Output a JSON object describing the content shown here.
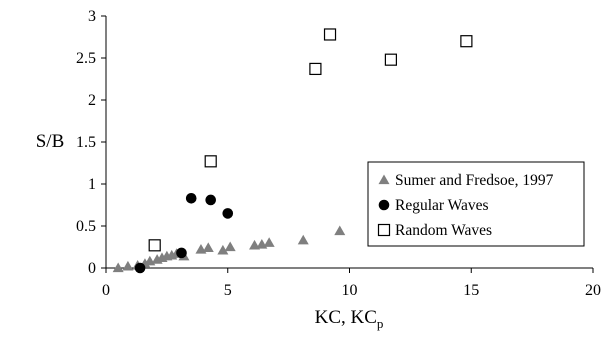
{
  "chart_data": {
    "type": "scatter",
    "xlabel": "KC, KC",
    "xlabel_sub": "p",
    "ylabel": "S/B",
    "xlim": [
      0,
      20
    ],
    "ylim": [
      0,
      3
    ],
    "x_ticks": [
      "0",
      "5",
      "10",
      "15",
      "20"
    ],
    "y_ticks": [
      "0",
      "0.5",
      "1",
      "1.5",
      "2",
      "2.5",
      "3"
    ],
    "grid": false,
    "legend_position": "right",
    "series": [
      {
        "name": "Sumer and Fredsoe, 1997",
        "marker": "triangle",
        "color": "#7f7f7f",
        "points": [
          [
            0.5,
            0.0
          ],
          [
            0.9,
            0.02
          ],
          [
            1.3,
            0.03
          ],
          [
            1.6,
            0.05
          ],
          [
            1.8,
            0.08
          ],
          [
            2.1,
            0.1
          ],
          [
            2.3,
            0.12
          ],
          [
            2.5,
            0.14
          ],
          [
            2.7,
            0.15
          ],
          [
            2.9,
            0.17
          ],
          [
            3.2,
            0.14
          ],
          [
            3.9,
            0.22
          ],
          [
            4.2,
            0.24
          ],
          [
            4.8,
            0.21
          ],
          [
            5.1,
            0.25
          ],
          [
            6.1,
            0.27
          ],
          [
            6.4,
            0.28
          ],
          [
            6.7,
            0.3
          ],
          [
            8.1,
            0.33
          ],
          [
            9.6,
            0.44
          ]
        ]
      },
      {
        "name": "Regular Waves",
        "marker": "circle",
        "color": "#000000",
        "points": [
          [
            1.4,
            0.0
          ],
          [
            3.1,
            0.18
          ],
          [
            3.5,
            0.83
          ],
          [
            4.3,
            0.81
          ],
          [
            5.0,
            0.65
          ]
        ]
      },
      {
        "name": "Random Waves",
        "marker": "square-open",
        "color": "#000000",
        "points": [
          [
            2.0,
            0.27
          ],
          [
            4.3,
            1.27
          ],
          [
            8.6,
            2.37
          ],
          [
            9.2,
            2.78
          ],
          [
            11.7,
            2.48
          ],
          [
            14.8,
            2.7
          ]
        ]
      }
    ]
  }
}
